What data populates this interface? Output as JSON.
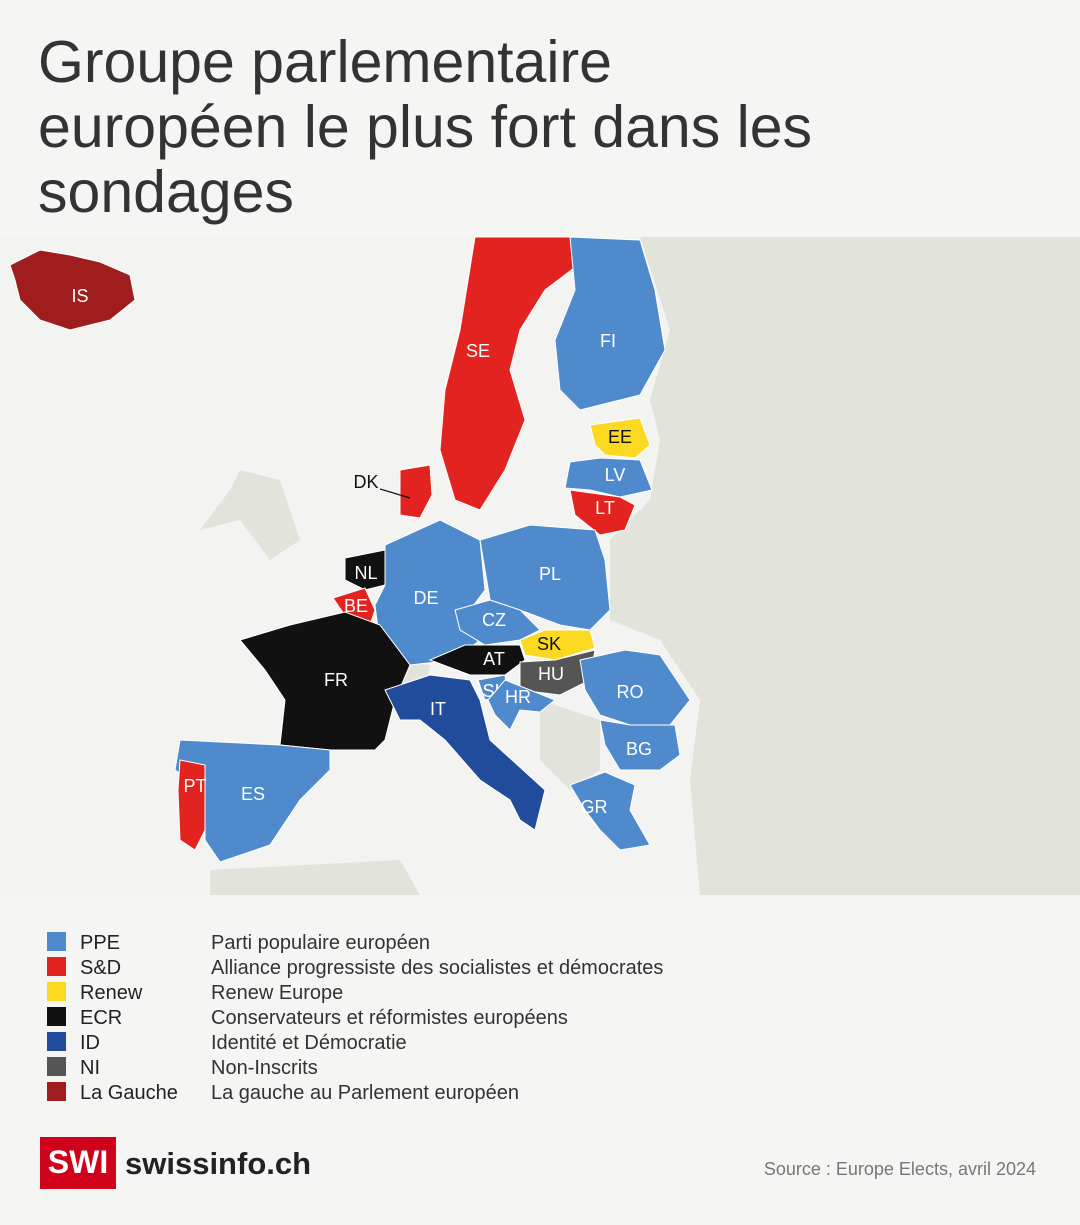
{
  "header": {
    "title": [
      "Groupe parlementaire",
      "européen le plus fort dans les",
      "sondages"
    ]
  },
  "map": {
    "countries": [
      {
        "code": "IS",
        "group": "La Gauche"
      },
      {
        "code": "SE",
        "group": "S&D"
      },
      {
        "code": "FI",
        "group": "PPE"
      },
      {
        "code": "EE",
        "group": "Renew"
      },
      {
        "code": "LV",
        "group": "PPE"
      },
      {
        "code": "LT",
        "group": "S&D"
      },
      {
        "code": "DK",
        "group": "S&D"
      },
      {
        "code": "NL",
        "group": "ECR"
      },
      {
        "code": "BE",
        "group": "S&D"
      },
      {
        "code": "DE",
        "group": "PPE"
      },
      {
        "code": "PL",
        "group": "PPE"
      },
      {
        "code": "CZ",
        "group": "PPE"
      },
      {
        "code": "SK",
        "group": "Renew"
      },
      {
        "code": "AT",
        "group": "ECR"
      },
      {
        "code": "HU",
        "group": "NI"
      },
      {
        "code": "SI",
        "group": "PPE"
      },
      {
        "code": "HR",
        "group": "PPE"
      },
      {
        "code": "RO",
        "group": "PPE"
      },
      {
        "code": "BG",
        "group": "PPE"
      },
      {
        "code": "FR",
        "group": "ECR"
      },
      {
        "code": "IT",
        "group": "ID"
      },
      {
        "code": "ES",
        "group": "PPE"
      },
      {
        "code": "PT",
        "group": "S&D"
      },
      {
        "code": "GR",
        "group": "PPE"
      }
    ]
  },
  "legend": [
    {
      "code": "PPE",
      "label": "Parti populaire européen",
      "color": "#4f8bcc"
    },
    {
      "code": "S&D",
      "label": "Alliance progressiste des socialistes et démocrates",
      "color": "#e2231f"
    },
    {
      "code": "Renew",
      "label": "Renew Europe",
      "color": "#fcd921"
    },
    {
      "code": "ECR",
      "label": "Conservateurs et réformistes européens",
      "color": "#111111"
    },
    {
      "code": "ID",
      "label": "Identité et Démocratie",
      "color": "#214b9b"
    },
    {
      "code": "NI",
      "label": "Non-Inscrits",
      "color": "#555555"
    },
    {
      "code": "La Gauche",
      "label": "La gauche au Parlement européen",
      "color": "#a01d1d"
    }
  ],
  "footer": {
    "logo_mark": "SWI",
    "logo_name": "swissinfo.ch",
    "source": "Source : Europe Elects, avril 2024"
  }
}
